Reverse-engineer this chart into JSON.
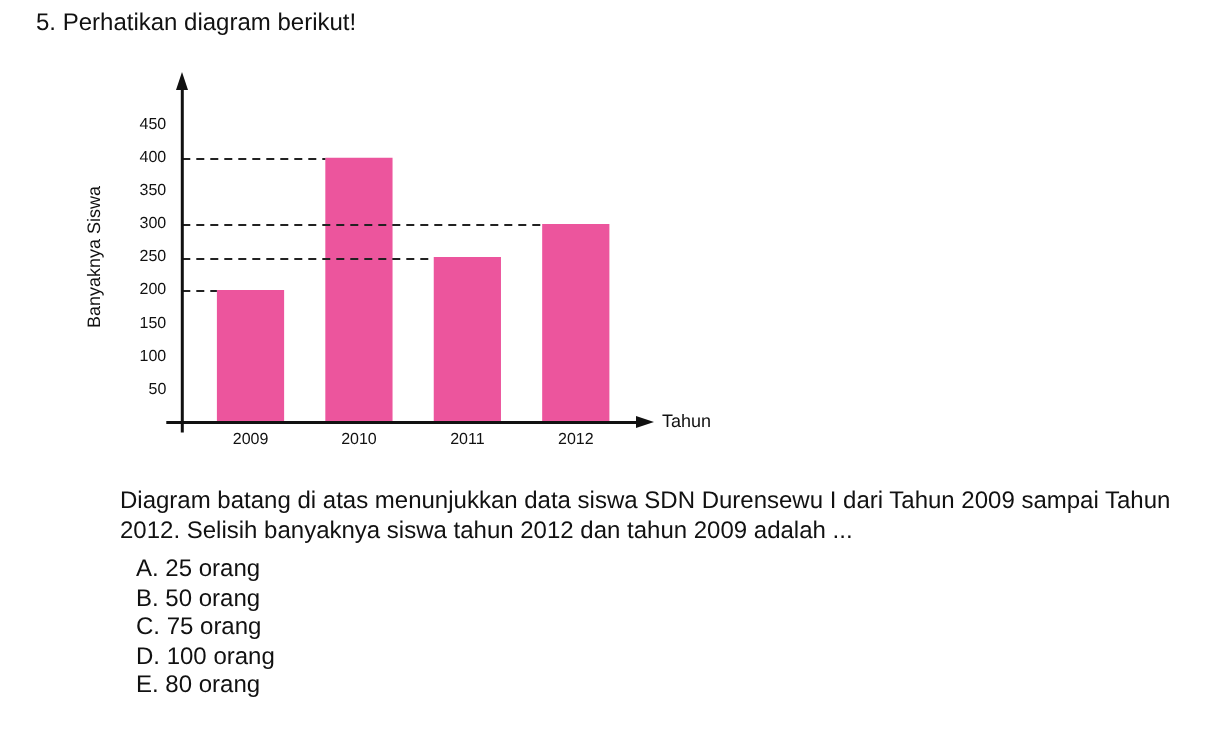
{
  "chart_data": {
    "type": "bar",
    "title": "5.   Perhatikan diagram berikut!",
    "xlabel": "Tahun",
    "ylabel": "Banyaknya Siswa",
    "categories": [
      "2009",
      "2010",
      "2011",
      "2012"
    ],
    "values": [
      200,
      400,
      250,
      300
    ],
    "color": "#ec559d",
    "ylim": [
      0,
      500
    ],
    "yticks": [
      50,
      100,
      150,
      200,
      250,
      300,
      350,
      400,
      450
    ],
    "grid": false,
    "ref_lines": [
      {
        "axis": "y",
        "value": 400,
        "line_style": "dashed"
      },
      {
        "axis": "y",
        "value": 300,
        "line_style": "dashed"
      },
      {
        "axis": "y",
        "value": 250,
        "line_style": "dashed"
      },
      {
        "axis": "y",
        "value": 200,
        "line_style": "dashed"
      }
    ],
    "annotations": [
      "Diagram batang di atas menunjukkan data siswa SDN Durensewu I dari Tahun 2009 sampai Tahun 2012. Selisih banyaknya siswa tahun 2012 dan tahun 2009 adalah ...",
      "A.   25 orang",
      "B.   50 orang",
      "C.   75 orang",
      "D.   100 orang",
      "E.   80 orang"
    ]
  }
}
